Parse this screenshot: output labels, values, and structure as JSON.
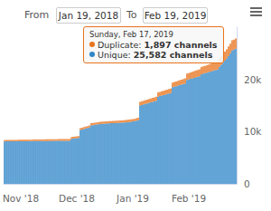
{
  "header": {
    "from_label": "From",
    "from_date": "Jan 19, 2018",
    "to_label": "To",
    "to_date": "Feb 19, 2019"
  },
  "tooltip": {
    "title": "Sunday, Feb 17, 2019",
    "lines": [
      "Duplicate: 1,897 channels",
      "Unique: 25,582 channels"
    ]
  },
  "chart_data": {
    "type": "bar",
    "stacked": true,
    "grid": false,
    "categories": [
      null,
      null,
      null,
      null,
      null,
      null,
      null,
      null,
      null,
      "Nov '18",
      null,
      null,
      null,
      null,
      null,
      null,
      null,
      null,
      null,
      null,
      null,
      null,
      null,
      null,
      null,
      null,
      null,
      null,
      null,
      null,
      null,
      null,
      null,
      null,
      null,
      null,
      null,
      null,
      null,
      null,
      "Dec '18",
      null,
      null,
      null,
      null,
      null,
      null,
      null,
      null,
      null,
      null,
      null,
      null,
      null,
      null,
      null,
      null,
      null,
      null,
      null,
      null,
      null,
      null,
      null,
      null,
      null,
      null,
      null,
      null,
      null,
      null,
      "Jan '19",
      null,
      null,
      null,
      null,
      null,
      null,
      null,
      null,
      null,
      null,
      null,
      null,
      null,
      null,
      null,
      null,
      null,
      null,
      null,
      null,
      null,
      null,
      null,
      null,
      null,
      null,
      null,
      null,
      null,
      null,
      "Feb '19",
      null,
      null,
      null,
      null,
      null,
      null,
      null,
      null,
      null,
      null,
      null,
      null,
      null,
      null,
      null,
      null,
      null,
      null,
      null,
      null,
      null,
      null,
      null,
      null,
      null,
      null
    ],
    "series": [
      {
        "name": "Unique",
        "color": "#2f86c8",
        "values": [
          8120,
          8130,
          8130,
          8140,
          8140,
          8150,
          8150,
          8150,
          8160,
          8160,
          8160,
          8170,
          8170,
          8170,
          8180,
          8180,
          8180,
          8190,
          8190,
          8190,
          8200,
          8200,
          8200,
          8210,
          8210,
          8210,
          8220,
          8220,
          8220,
          8230,
          8230,
          8230,
          8240,
          8240,
          8240,
          8250,
          8250,
          8600,
          8650,
          8700,
          8750,
          8800,
          10300,
          10400,
          10500,
          10600,
          10700,
          10800,
          11200,
          11250,
          11300,
          11350,
          11400,
          11450,
          11500,
          11520,
          11540,
          11560,
          11580,
          11600,
          11620,
          11640,
          11660,
          11680,
          11700,
          11720,
          11740,
          11760,
          11800,
          11850,
          11900,
          11950,
          12000,
          12100,
          12200,
          15000,
          15100,
          15200,
          15300,
          15400,
          15500,
          15600,
          15700,
          15800,
          15900,
          16700,
          16800,
          16900,
          17000,
          17100,
          17200,
          17300,
          17400,
          18500,
          18600,
          18700,
          18800,
          18900,
          19000,
          19100,
          19200,
          19900,
          20000,
          20100,
          20200,
          20300,
          20400,
          20500,
          20600,
          21000,
          21100,
          21200,
          21300,
          21400,
          21500,
          21600,
          21700,
          21800,
          21900,
          22400,
          22800,
          23200,
          23600,
          24000,
          24500,
          25000,
          25582,
          25700,
          25900
        ]
      },
      {
        "name": "Duplicate",
        "color": "#e8731c",
        "values": [
          260,
          260,
          265,
          265,
          270,
          270,
          275,
          275,
          280,
          280,
          285,
          285,
          290,
          290,
          295,
          295,
          300,
          300,
          305,
          305,
          310,
          310,
          315,
          315,
          320,
          320,
          325,
          325,
          330,
          330,
          335,
          335,
          340,
          340,
          345,
          345,
          350,
          350,
          355,
          355,
          360,
          360,
          365,
          365,
          370,
          370,
          375,
          375,
          400,
          400,
          405,
          405,
          410,
          410,
          415,
          415,
          420,
          420,
          425,
          425,
          430,
          430,
          435,
          435,
          440,
          440,
          445,
          445,
          450,
          450,
          455,
          455,
          460,
          460,
          470,
          700,
          710,
          720,
          730,
          740,
          750,
          760,
          770,
          780,
          790,
          800,
          810,
          820,
          830,
          840,
          850,
          860,
          870,
          880,
          890,
          900,
          920,
          940,
          960,
          980,
          1000,
          1200,
          1220,
          1240,
          1260,
          1280,
          1300,
          1320,
          1340,
          1360,
          1380,
          1400,
          1420,
          1440,
          1460,
          1480,
          1500,
          1530,
          1560,
          1590,
          1620,
          1650,
          1700,
          1750,
          1800,
          1850,
          1897,
          1900,
          1920
        ]
      }
    ],
    "ylim": [
      0,
      30000
    ],
    "yticks": [
      0,
      {
        "value": 10000,
        "label": "10k"
      },
      {
        "value": 20000,
        "label": "20k"
      }
    ]
  }
}
